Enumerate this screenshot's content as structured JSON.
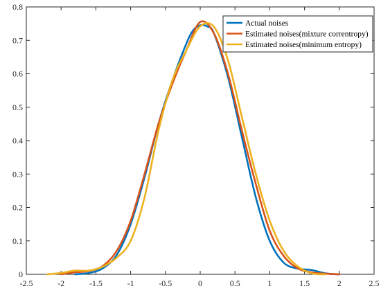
{
  "chart_data": {
    "type": "line",
    "title": "",
    "xlabel": "",
    "ylabel": "",
    "xlim": [
      -2.5,
      2.5
    ],
    "ylim": [
      0,
      0.8
    ],
    "x_ticks": [
      "-2.5",
      "-2",
      "-1.5",
      "-1",
      "-0.5",
      "0",
      "0.5",
      "1",
      "1.5",
      "2",
      "2.5"
    ],
    "y_ticks": [
      "0",
      "0.1",
      "0.2",
      "0.3",
      "0.4",
      "0.5",
      "0.6",
      "0.7",
      "0.8"
    ],
    "grid": false,
    "legend_position": "top-right",
    "series": [
      {
        "name": "Actual noises",
        "color": "#0072BD",
        "points": [
          [
            -1.8,
            0.0
          ],
          [
            -1.6,
            0.004
          ],
          [
            -1.4,
            0.018
          ],
          [
            -1.2,
            0.058
          ],
          [
            -1.0,
            0.15
          ],
          [
            -0.8,
            0.29
          ],
          [
            -0.6,
            0.45
          ],
          [
            -0.4,
            0.58
          ],
          [
            -0.2,
            0.69
          ],
          [
            -0.1,
            0.73
          ],
          [
            0.0,
            0.745
          ],
          [
            0.1,
            0.742
          ],
          [
            0.2,
            0.72
          ],
          [
            0.4,
            0.59
          ],
          [
            0.6,
            0.41
          ],
          [
            0.8,
            0.23
          ],
          [
            1.0,
            0.1
          ],
          [
            1.2,
            0.035
          ],
          [
            1.4,
            0.017
          ],
          [
            1.6,
            0.013
          ],
          [
            1.8,
            0.003
          ],
          [
            2.0,
            0.0
          ]
        ]
      },
      {
        "name": "Estimated noises(mixture correntropy)",
        "color": "#D95319",
        "points": [
          [
            -2.0,
            0.0
          ],
          [
            -1.8,
            0.006
          ],
          [
            -1.6,
            0.01
          ],
          [
            -1.4,
            0.025
          ],
          [
            -1.2,
            0.07
          ],
          [
            -1.0,
            0.16
          ],
          [
            -0.8,
            0.3
          ],
          [
            -0.6,
            0.45
          ],
          [
            -0.4,
            0.57
          ],
          [
            -0.2,
            0.67
          ],
          [
            0.0,
            0.755
          ],
          [
            0.2,
            0.72
          ],
          [
            0.4,
            0.6
          ],
          [
            0.6,
            0.43
          ],
          [
            0.8,
            0.27
          ],
          [
            1.0,
            0.13
          ],
          [
            1.2,
            0.055
          ],
          [
            1.4,
            0.018
          ],
          [
            1.6,
            0.006
          ],
          [
            1.8,
            0.002
          ],
          [
            2.0,
            0.0
          ]
        ]
      },
      {
        "name": "Estimated noises(minimum entropy)",
        "color": "#EDB120",
        "points": [
          [
            -2.2,
            0.0
          ],
          [
            -2.0,
            0.004
          ],
          [
            -1.8,
            0.011
          ],
          [
            -1.6,
            0.011
          ],
          [
            -1.4,
            0.023
          ],
          [
            -1.2,
            0.05
          ],
          [
            -1.0,
            0.1
          ],
          [
            -0.8,
            0.23
          ],
          [
            -0.6,
            0.43
          ],
          [
            -0.4,
            0.58
          ],
          [
            -0.2,
            0.67
          ],
          [
            0.0,
            0.742
          ],
          [
            0.2,
            0.74
          ],
          [
            0.4,
            0.64
          ],
          [
            0.6,
            0.47
          ],
          [
            0.8,
            0.3
          ],
          [
            1.0,
            0.16
          ],
          [
            1.2,
            0.07
          ],
          [
            1.4,
            0.024
          ],
          [
            1.6,
            0.003
          ],
          [
            1.8,
            0.0
          ]
        ]
      }
    ]
  }
}
